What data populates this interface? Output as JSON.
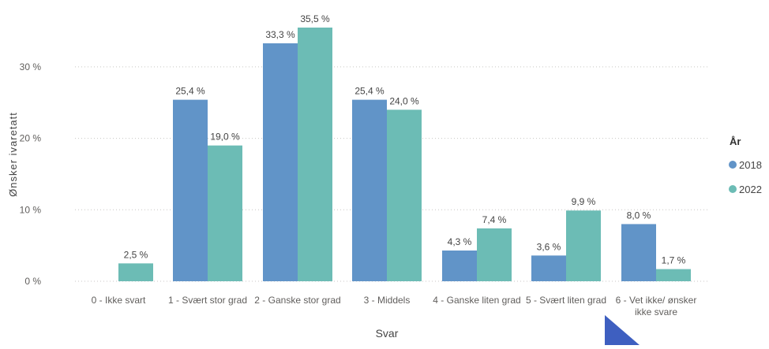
{
  "chart_data": {
    "type": "bar",
    "title": "",
    "xlabel": "Svar",
    "ylabel": "Ønsker ivaretatt",
    "ylim": [
      0,
      35.5
    ],
    "yticks": [
      "0 %",
      "10 %",
      "20 %",
      "30 %"
    ],
    "ytick_values": [
      0,
      10,
      20,
      30
    ],
    "grid": true,
    "legend_title": "År",
    "legend_position": "right",
    "categories": [
      "0 - Ikke svart",
      "1 - Svært stor grad",
      "2 - Ganske stor grad",
      "3 - Middels",
      "4 - Ganske liten grad",
      "5 - Svært liten grad",
      "6 - Vet ikke/ ønsker ikke svare"
    ],
    "category_lines": [
      [
        "0 - Ikke svart"
      ],
      [
        "1 - Svært stor grad"
      ],
      [
        "2 - Ganske stor grad"
      ],
      [
        "3 - Middels"
      ],
      [
        "4 - Ganske liten grad"
      ],
      [
        "5 - Svært liten grad"
      ],
      [
        "6 - Vet ikke/ ønsker",
        "ikke svare"
      ]
    ],
    "series": [
      {
        "name": "2018",
        "color": "#6194c8",
        "values": [
          null,
          25.4,
          33.3,
          25.4,
          4.3,
          3.6,
          8.0
        ],
        "labels": [
          "",
          "25,4 %",
          "33,3 %",
          "25,4 %",
          "4,3 %",
          "3,6 %",
          "8,0 %"
        ]
      },
      {
        "name": "2022",
        "color": "#6cbcb5",
        "values": [
          2.5,
          19.0,
          35.5,
          24.0,
          7.4,
          9.9,
          1.7
        ],
        "labels": [
          "2,5 %",
          "19,0 %",
          "35,5 %",
          "24,0 %",
          "7,4 %",
          "9,9 %",
          "1,7 %"
        ]
      }
    ]
  },
  "colors": {
    "axis_text": "#605e5c",
    "gridline": "#c8c6c4",
    "corner_arrow": "#3e5fc0"
  },
  "overlay": {
    "corner_arrow_icon": "triangle-arrow-icon"
  }
}
